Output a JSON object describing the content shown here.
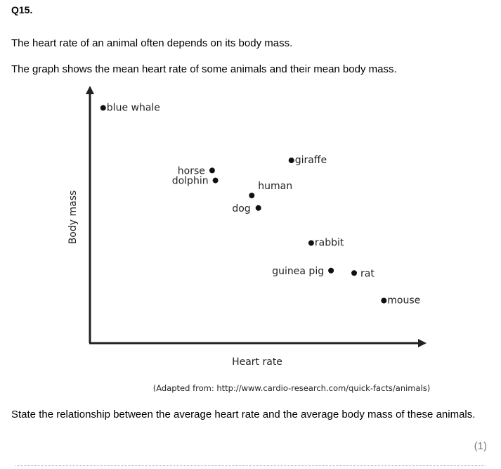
{
  "question": {
    "number": "Q15.",
    "intro_1": "The heart rate of an animal often depends on its body mass.",
    "intro_2": "The graph shows the mean heart rate of some animals and their mean body mass.",
    "prompt": "State the relationship between the average heart rate and the average body mass of these animals.",
    "marks": "(1)"
  },
  "source_note": "(Adapted from: http://www.cardio-research.com/quick-facts/animals)",
  "chart_data": {
    "type": "scatter",
    "xlabel": "Heart rate",
    "ylabel": "Body mass",
    "xlim": [
      0,
      100
    ],
    "ylim": [
      0,
      100
    ],
    "grid": false,
    "points": [
      {
        "label": "blue whale",
        "x": 4,
        "y": 94
      },
      {
        "label": "horse",
        "x": 37,
        "y": 69
      },
      {
        "label": "dolphin",
        "x": 38,
        "y": 65
      },
      {
        "label": "giraffe",
        "x": 61,
        "y": 73
      },
      {
        "label": "human",
        "x": 49,
        "y": 59
      },
      {
        "label": "dog",
        "x": 51,
        "y": 54
      },
      {
        "label": "rabbit",
        "x": 67,
        "y": 40
      },
      {
        "label": "guinea pig",
        "x": 73,
        "y": 29
      },
      {
        "label": "rat",
        "x": 80,
        "y": 28
      },
      {
        "label": "mouse",
        "x": 89,
        "y": 17
      }
    ]
  }
}
